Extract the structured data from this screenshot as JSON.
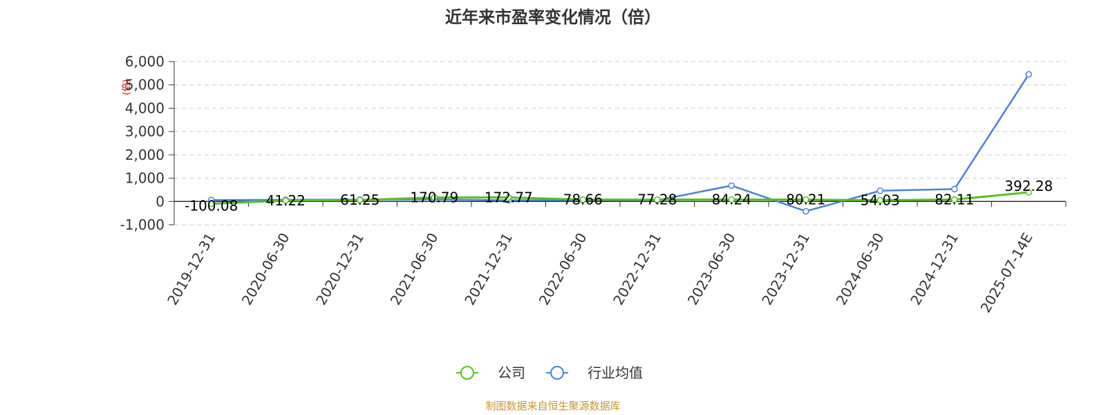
{
  "title": "近年来市盈率变化情况（倍）",
  "y_unit": "(倍)",
  "source": "制图数据来自恒生聚源数据库",
  "colors": {
    "company": "#52c41a",
    "industry": "#4a7fe0",
    "grid": "#cccccc",
    "axis": "#333333",
    "source": "#c8962e",
    "unit": "#e60000"
  },
  "chart_data": {
    "type": "line",
    "title": "近年来市盈率变化情况（倍）",
    "xlabel": "",
    "ylabel": "(倍)",
    "categories": [
      "2019-12-31",
      "2020-06-30",
      "2020-12-31",
      "2021-06-30",
      "2021-12-31",
      "2022-06-30",
      "2022-12-31",
      "2023-06-30",
      "2023-12-31",
      "2024-06-30",
      "2024-12-31",
      "2025-07-14E"
    ],
    "yticks": [
      -1000,
      0,
      1000,
      2000,
      3000,
      4000,
      5000,
      6000
    ],
    "ytick_labels": [
      "-1,000",
      "0",
      "1,000",
      "2,000",
      "3,000",
      "4,000",
      "5,000",
      "6,000"
    ],
    "ylim": [
      -1000,
      6000
    ],
    "grid": true,
    "legend_position": "bottom-center",
    "series": [
      {
        "name": "公司",
        "color": "#52c41a",
        "values": [
          -100.08,
          41.22,
          61.25,
          170.79,
          172.77,
          78.66,
          77.28,
          84.24,
          80.21,
          54.03,
          82.11,
          392.28
        ],
        "labels": [
          "-100.08",
          "41.22",
          "61.25",
          "170.79",
          "172.77",
          "78.66",
          "77.28",
          "84.24",
          "80.21",
          "54.03",
          "82.11",
          "392.28"
        ]
      },
      {
        "name": "行业均值",
        "color": "#4a7fe0",
        "values": [
          60,
          70,
          80,
          90,
          50,
          60,
          50,
          680,
          -420,
          460,
          530,
          5450
        ]
      }
    ]
  }
}
